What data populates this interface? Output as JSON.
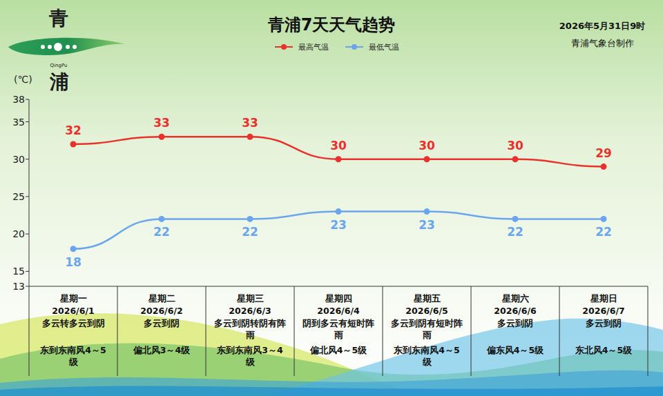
{
  "chart_data": {
    "type": "line",
    "title": "青浦7天天气趋势",
    "subtitle": "2026年5月31日9时",
    "source": "青浦气象台制作",
    "logo": [
      "青",
      "QingPu",
      "浦"
    ],
    "y_label": "(℃)",
    "categories": [
      "2026/6/1",
      "2026/6/2",
      "2026/6/3",
      "2026/6/4",
      "2026/6/5",
      "2026/6/6",
      "2026/6/7"
    ],
    "weekdays": [
      "星期一",
      "星期二",
      "星期三",
      "星期四",
      "星期五",
      "星期六",
      "星期日"
    ],
    "weather": [
      "多云转多云到阴",
      "多云到阴",
      "多云到阴转阴有阵雨",
      "阴到多云有短时阵雨",
      "多云到阴有短时阵雨",
      "多云到阴",
      "多云到阴"
    ],
    "wind": [
      "东到东南风4～5级",
      "偏北风3～4级",
      "东到东南风3～4级",
      "偏北风4～5级",
      "东到东南风4～5级",
      "偏东风4～5级",
      "东北风4～5级"
    ],
    "series": [
      {
        "name": "最高气温",
        "color": "#e8322c",
        "marker": "circle",
        "line_style": "solid",
        "values": [
          32,
          33,
          33,
          30,
          30,
          30,
          29
        ]
      },
      {
        "name": "最低气温",
        "color": "#6aa5ee",
        "marker": "circle",
        "line_style": "solid",
        "values": [
          18,
          22,
          22,
          23,
          23,
          22,
          22
        ]
      }
    ],
    "ylim": [
      13,
      38
    ],
    "yticks": [
      13,
      15,
      20,
      25,
      30,
      35,
      38
    ],
    "grid": false,
    "legend": "top",
    "data_labels": true
  }
}
